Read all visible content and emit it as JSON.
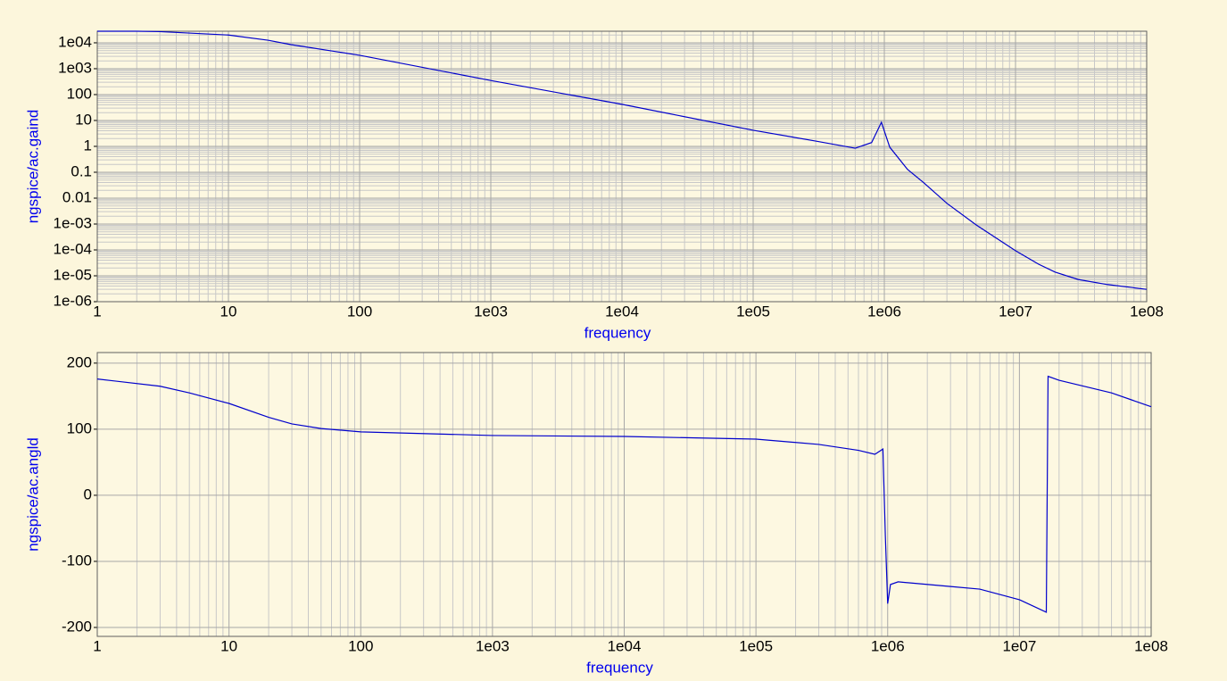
{
  "chart_data": [
    {
      "type": "line",
      "ylabel": "ngspice/ac.gaind",
      "xlabel": "frequency",
      "xlog": true,
      "ylog": true,
      "grid": true,
      "minor_grid": true,
      "xlim": [
        1,
        100000000
      ],
      "ylim": [
        1e-06,
        28000
      ],
      "xticks": [
        1,
        10,
        100,
        {
          "value": 1000,
          "label": "1e03"
        },
        {
          "value": 10000,
          "label": "1e04"
        },
        {
          "value": 100000,
          "label": "1e05"
        },
        {
          "value": 1000000,
          "label": "1e06"
        },
        {
          "value": 10000000,
          "label": "1e07"
        },
        {
          "value": 100000000,
          "label": "1e08"
        }
      ],
      "yticks": [
        {
          "value": 1e-06,
          "label": "1e-06"
        },
        {
          "value": 1e-05,
          "label": "1e-05"
        },
        {
          "value": 0.0001,
          "label": "1e-04"
        },
        {
          "value": 0.001,
          "label": "1e-03"
        },
        0.01,
        0.1,
        1,
        10,
        100,
        {
          "value": 1000,
          "label": "1e03"
        },
        {
          "value": 10000,
          "label": "1e04"
        }
      ],
      "x": [
        1,
        2,
        3,
        10,
        20,
        30,
        100,
        1000,
        10000,
        100000,
        300000,
        600000,
        800000,
        950000,
        1100000,
        1500000,
        2000000,
        3000000,
        5000000,
        10000000,
        15000000,
        20000000,
        30000000,
        50000000,
        100000000
      ],
      "series": [
        {
          "color": "#0000cc",
          "values": [
            28000,
            28000,
            27000,
            20000,
            12600,
            8500,
            3300,
            350,
            42,
            4.2,
            1.6,
            0.85,
            1.4,
            8.5,
            0.93,
            0.13,
            0.039,
            0.0063,
            0.00093,
            9.3e-05,
            2.8e-05,
            1.4e-05,
            7.2e-06,
            4.6e-06,
            3e-06
          ]
        }
      ]
    },
    {
      "type": "line",
      "ylabel": "ngspice/ac.angld",
      "xlabel": "frequency",
      "xlog": true,
      "ylog": false,
      "grid": true,
      "minor_grid": true,
      "xlim": [
        1,
        100000000
      ],
      "ylim": [
        -213.5,
        216
      ],
      "xticks": [
        1,
        10,
        100,
        {
          "value": 1000,
          "label": "1e03"
        },
        {
          "value": 10000,
          "label": "1e04"
        },
        {
          "value": 100000,
          "label": "1e05"
        },
        {
          "value": 1000000,
          "label": "1e06"
        },
        {
          "value": 10000000,
          "label": "1e07"
        },
        {
          "value": 100000000,
          "label": "1e08"
        }
      ],
      "yticks": [
        -200,
        -100,
        0,
        100,
        200
      ],
      "x": [
        1,
        3,
        5,
        10,
        20,
        30,
        50,
        100,
        1000,
        10000,
        100000,
        300000,
        600000,
        800000,
        920000,
        960000,
        1000000,
        1050000,
        1200000,
        3000000,
        5000000,
        10000000,
        16000000,
        16500000,
        20000000,
        50000000,
        100000000
      ],
      "series": [
        {
          "color": "#0000cc",
          "values": [
            176,
            165,
            155,
            139,
            118,
            108,
            101,
            96,
            90.5,
            89,
            85,
            77,
            68,
            62,
            70,
            -61,
            -164,
            -135,
            -131,
            -138,
            -142,
            -158,
            -177,
            180,
            174,
            155,
            134
          ]
        }
      ]
    }
  ]
}
